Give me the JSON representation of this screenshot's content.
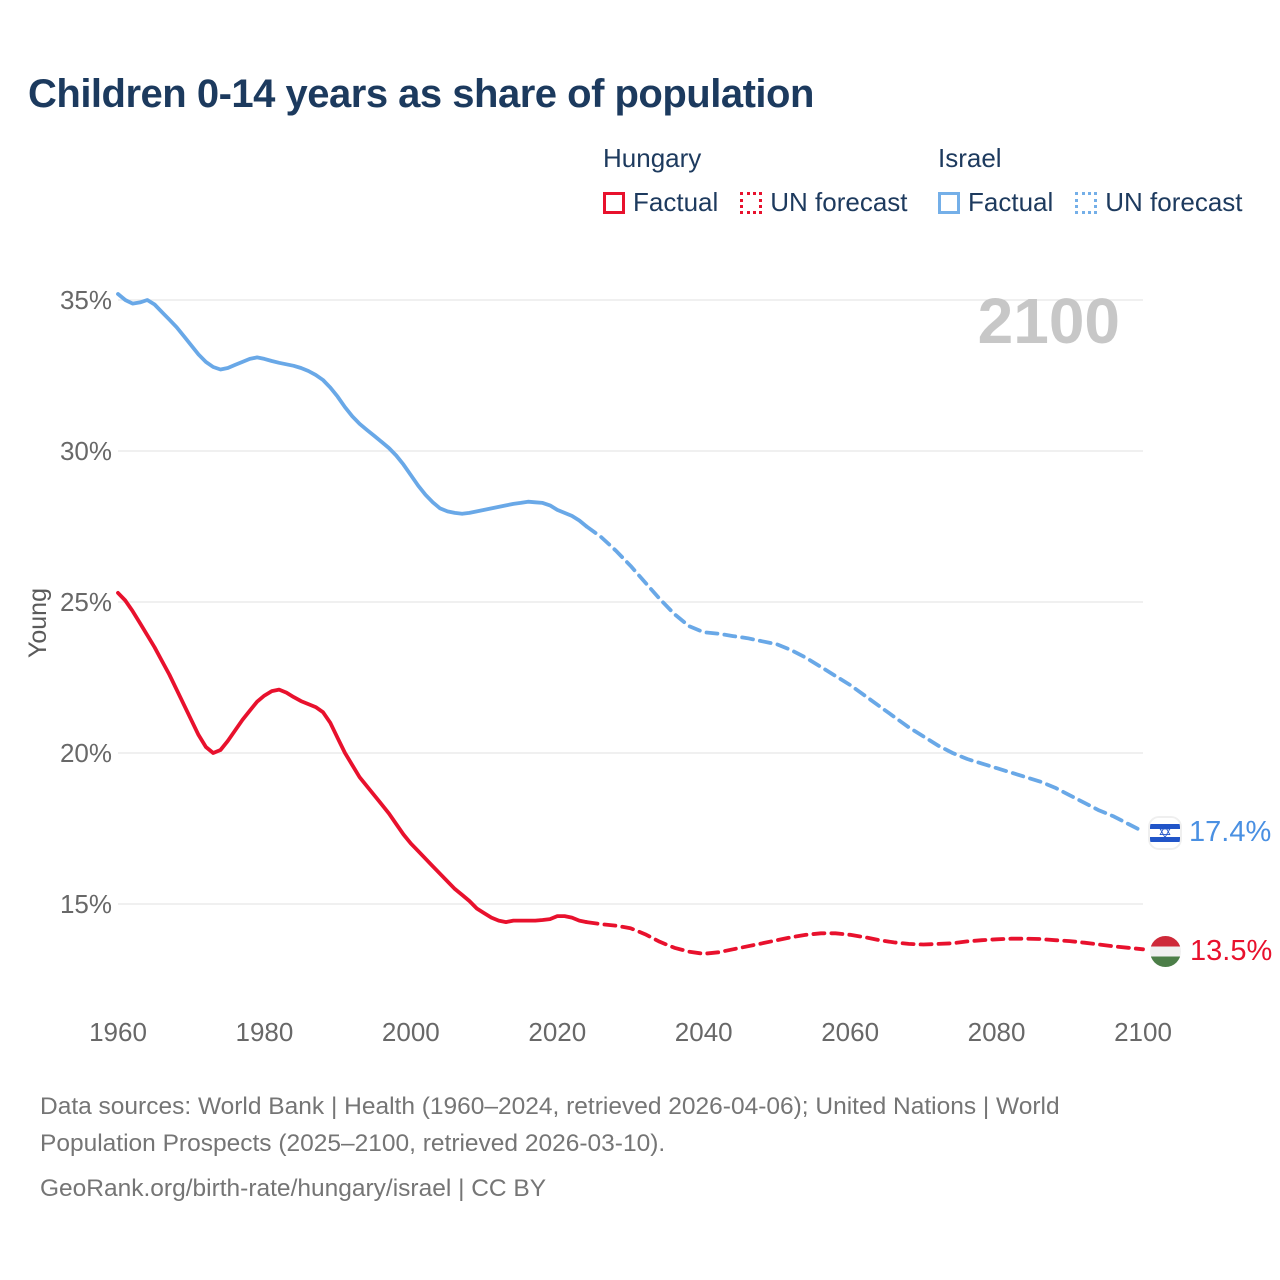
{
  "title": "Children 0-14 years as share of population",
  "watermark_year": "2100",
  "legend": {
    "hungary": {
      "label": "Hungary",
      "factual": "Factual",
      "forecast": "UN forecast"
    },
    "israel": {
      "label": "Israel",
      "factual": "Factual",
      "forecast": "UN forecast"
    }
  },
  "end_labels": {
    "israel": {
      "value": "17.4%",
      "flag": "israel-flag"
    },
    "hungary": {
      "value": "13.5%",
      "flag": "hungary-flag"
    }
  },
  "footer": {
    "sources": "Data sources: World Bank | Health (1960–2024, retrieved 2026-04-06); United Nations | World Population Prospects (2025–2100, retrieved 2026-03-10).",
    "link": "GeoRank.org/birth-rate/hungary/israel | CC BY"
  },
  "colors": {
    "hungary_line": "#e8112d",
    "israel_line": "#69a8e7",
    "israel_value_text": "#4a90e2",
    "title_text": "#1c3a5e",
    "axis_text": "#686868",
    "footer_text": "#757575",
    "gridline": "#e7e7e7",
    "watermark": "#c7c7c7",
    "israel_flag_blue": "#2155c8",
    "hungary_flag_red": "#ce2939",
    "hungary_flag_green": "#4c7e48"
  },
  "chart_data": {
    "type": "line",
    "title": "Children 0-14 years as share of population",
    "xlabel": "",
    "ylabel": "Young",
    "xlim": [
      1960,
      2100
    ],
    "ylim": [
      13,
      36.5
    ],
    "yticks": [
      15,
      20,
      25,
      30,
      35
    ],
    "ytick_suffix": "%",
    "xticks": [
      1960,
      1980,
      2000,
      2020,
      2040,
      2060,
      2080,
      2100
    ],
    "grid": "horizontal",
    "legend_position": "top-right",
    "series": [
      {
        "name": "Israel Factual",
        "color": "#69a8e7",
        "dashed": false,
        "points": [
          [
            1960,
            35.2
          ],
          [
            1961,
            35.0
          ],
          [
            1962,
            34.88
          ],
          [
            1963,
            34.92
          ],
          [
            1964,
            35.0
          ],
          [
            1965,
            34.85
          ],
          [
            1966,
            34.6
          ],
          [
            1967,
            34.35
          ],
          [
            1968,
            34.1
          ],
          [
            1969,
            33.8
          ],
          [
            1970,
            33.5
          ],
          [
            1971,
            33.2
          ],
          [
            1972,
            32.95
          ],
          [
            1973,
            32.78
          ],
          [
            1974,
            32.7
          ],
          [
            1975,
            32.75
          ],
          [
            1976,
            32.85
          ],
          [
            1977,
            32.95
          ],
          [
            1978,
            33.05
          ],
          [
            1979,
            33.1
          ],
          [
            1980,
            33.05
          ],
          [
            1981,
            32.98
          ],
          [
            1982,
            32.92
          ],
          [
            1983,
            32.87
          ],
          [
            1984,
            32.82
          ],
          [
            1985,
            32.75
          ],
          [
            1986,
            32.65
          ],
          [
            1987,
            32.52
          ],
          [
            1988,
            32.35
          ],
          [
            1989,
            32.1
          ],
          [
            1990,
            31.8
          ],
          [
            1991,
            31.45
          ],
          [
            1992,
            31.15
          ],
          [
            1993,
            30.9
          ],
          [
            1994,
            30.7
          ],
          [
            1995,
            30.5
          ],
          [
            1996,
            30.3
          ],
          [
            1997,
            30.1
          ],
          [
            1998,
            29.85
          ],
          [
            1999,
            29.55
          ],
          [
            2000,
            29.2
          ],
          [
            2001,
            28.85
          ],
          [
            2002,
            28.55
          ],
          [
            2003,
            28.3
          ],
          [
            2004,
            28.1
          ],
          [
            2005,
            28.0
          ],
          [
            2006,
            27.95
          ],
          [
            2007,
            27.92
          ],
          [
            2008,
            27.95
          ],
          [
            2009,
            28.0
          ],
          [
            2010,
            28.05
          ],
          [
            2011,
            28.1
          ],
          [
            2012,
            28.15
          ],
          [
            2013,
            28.2
          ],
          [
            2014,
            28.25
          ],
          [
            2015,
            28.28
          ],
          [
            2016,
            28.32
          ],
          [
            2017,
            28.3
          ],
          [
            2018,
            28.28
          ],
          [
            2019,
            28.2
          ],
          [
            2020,
            28.05
          ],
          [
            2021,
            27.95
          ],
          [
            2022,
            27.85
          ],
          [
            2023,
            27.7
          ],
          [
            2024,
            27.5
          ]
        ]
      },
      {
        "name": "Israel UN forecast",
        "color": "#69a8e7",
        "dashed": true,
        "points": [
          [
            2024,
            27.5
          ],
          [
            2026,
            27.15
          ],
          [
            2028,
            26.7
          ],
          [
            2030,
            26.2
          ],
          [
            2032,
            25.65
          ],
          [
            2034,
            25.1
          ],
          [
            2036,
            24.6
          ],
          [
            2038,
            24.2
          ],
          [
            2040,
            24.0
          ],
          [
            2042,
            23.95
          ],
          [
            2044,
            23.87
          ],
          [
            2046,
            23.8
          ],
          [
            2048,
            23.7
          ],
          [
            2050,
            23.6
          ],
          [
            2052,
            23.4
          ],
          [
            2054,
            23.15
          ],
          [
            2056,
            22.85
          ],
          [
            2058,
            22.55
          ],
          [
            2060,
            22.25
          ],
          [
            2062,
            21.9
          ],
          [
            2064,
            21.55
          ],
          [
            2066,
            21.2
          ],
          [
            2068,
            20.85
          ],
          [
            2070,
            20.55
          ],
          [
            2072,
            20.25
          ],
          [
            2074,
            20.0
          ],
          [
            2076,
            19.8
          ],
          [
            2078,
            19.65
          ],
          [
            2080,
            19.5
          ],
          [
            2082,
            19.35
          ],
          [
            2084,
            19.2
          ],
          [
            2086,
            19.05
          ],
          [
            2088,
            18.85
          ],
          [
            2090,
            18.6
          ],
          [
            2092,
            18.35
          ],
          [
            2094,
            18.1
          ],
          [
            2096,
            17.9
          ],
          [
            2098,
            17.65
          ],
          [
            2100,
            17.4
          ]
        ]
      },
      {
        "name": "Hungary Factual",
        "color": "#e8112d",
        "dashed": false,
        "points": [
          [
            1960,
            25.3
          ],
          [
            1961,
            25.05
          ],
          [
            1962,
            24.7
          ],
          [
            1963,
            24.3
          ],
          [
            1964,
            23.9
          ],
          [
            1965,
            23.5
          ],
          [
            1966,
            23.05
          ],
          [
            1967,
            22.6
          ],
          [
            1968,
            22.1
          ],
          [
            1969,
            21.6
          ],
          [
            1970,
            21.1
          ],
          [
            1971,
            20.6
          ],
          [
            1972,
            20.2
          ],
          [
            1973,
            20.0
          ],
          [
            1974,
            20.1
          ],
          [
            1975,
            20.4
          ],
          [
            1976,
            20.75
          ],
          [
            1977,
            21.1
          ],
          [
            1978,
            21.4
          ],
          [
            1979,
            21.7
          ],
          [
            1980,
            21.9
          ],
          [
            1981,
            22.05
          ],
          [
            1982,
            22.1
          ],
          [
            1983,
            22.0
          ],
          [
            1984,
            21.85
          ],
          [
            1985,
            21.72
          ],
          [
            1986,
            21.62
          ],
          [
            1987,
            21.52
          ],
          [
            1988,
            21.35
          ],
          [
            1989,
            21.0
          ],
          [
            1990,
            20.5
          ],
          [
            1991,
            20.0
          ],
          [
            1992,
            19.6
          ],
          [
            1993,
            19.2
          ],
          [
            1994,
            18.9
          ],
          [
            1995,
            18.6
          ],
          [
            1996,
            18.3
          ],
          [
            1997,
            18.0
          ],
          [
            1998,
            17.65
          ],
          [
            1999,
            17.3
          ],
          [
            2000,
            17.0
          ],
          [
            2001,
            16.75
          ],
          [
            2002,
            16.5
          ],
          [
            2003,
            16.25
          ],
          [
            2004,
            16.0
          ],
          [
            2005,
            15.75
          ],
          [
            2006,
            15.5
          ],
          [
            2007,
            15.3
          ],
          [
            2008,
            15.1
          ],
          [
            2009,
            14.85
          ],
          [
            2010,
            14.7
          ],
          [
            2011,
            14.55
          ],
          [
            2012,
            14.45
          ],
          [
            2013,
            14.4
          ],
          [
            2014,
            14.45
          ],
          [
            2015,
            14.45
          ],
          [
            2016,
            14.45
          ],
          [
            2017,
            14.45
          ],
          [
            2018,
            14.47
          ],
          [
            2019,
            14.5
          ],
          [
            2020,
            14.6
          ],
          [
            2021,
            14.6
          ],
          [
            2022,
            14.55
          ],
          [
            2023,
            14.45
          ],
          [
            2024,
            14.4
          ]
        ]
      },
      {
        "name": "Hungary UN forecast",
        "color": "#e8112d",
        "dashed": true,
        "points": [
          [
            2024,
            14.4
          ],
          [
            2026,
            14.33
          ],
          [
            2028,
            14.28
          ],
          [
            2030,
            14.2
          ],
          [
            2032,
            14.0
          ],
          [
            2034,
            13.75
          ],
          [
            2036,
            13.55
          ],
          [
            2038,
            13.42
          ],
          [
            2040,
            13.35
          ],
          [
            2042,
            13.4
          ],
          [
            2044,
            13.5
          ],
          [
            2046,
            13.6
          ],
          [
            2048,
            13.7
          ],
          [
            2050,
            13.8
          ],
          [
            2052,
            13.9
          ],
          [
            2054,
            13.98
          ],
          [
            2056,
            14.03
          ],
          [
            2058,
            14.03
          ],
          [
            2060,
            13.98
          ],
          [
            2062,
            13.9
          ],
          [
            2064,
            13.8
          ],
          [
            2066,
            13.73
          ],
          [
            2068,
            13.68
          ],
          [
            2070,
            13.66
          ],
          [
            2072,
            13.68
          ],
          [
            2074,
            13.7
          ],
          [
            2076,
            13.76
          ],
          [
            2078,
            13.8
          ],
          [
            2080,
            13.83
          ],
          [
            2082,
            13.85
          ],
          [
            2084,
            13.85
          ],
          [
            2086,
            13.84
          ],
          [
            2088,
            13.8
          ],
          [
            2090,
            13.77
          ],
          [
            2092,
            13.72
          ],
          [
            2094,
            13.66
          ],
          [
            2096,
            13.6
          ],
          [
            2098,
            13.55
          ],
          [
            2100,
            13.5
          ]
        ]
      }
    ]
  }
}
